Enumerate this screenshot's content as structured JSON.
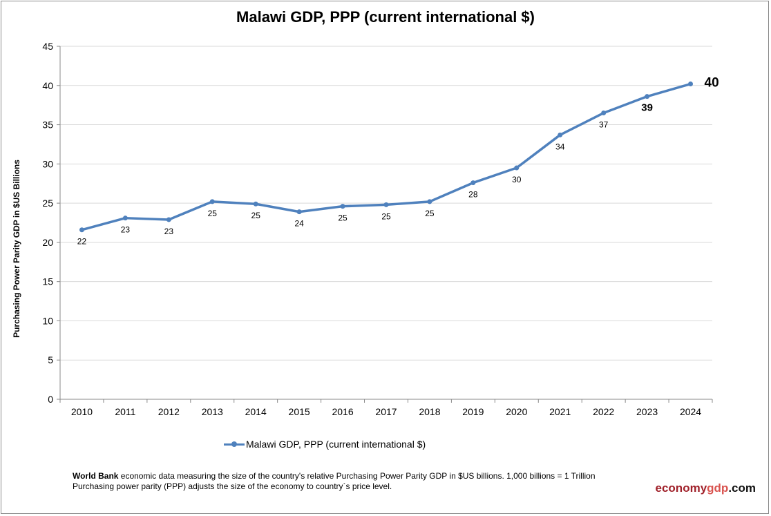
{
  "chart_data": {
    "type": "line",
    "title": "Malawi GDP, PPP (current international $)",
    "ylabel": "Purchasing Power Parity GDP in $US Billions",
    "xlabel": "",
    "ylim": [
      0,
      45
    ],
    "yticks": [
      0,
      5,
      10,
      15,
      20,
      25,
      30,
      35,
      40,
      45
    ],
    "grid": true,
    "legend_placement": "bottom",
    "categories": [
      "2010",
      "2011",
      "2012",
      "2013",
      "2014",
      "2015",
      "2016",
      "2017",
      "2018",
      "2019",
      "2020",
      "2021",
      "2022",
      "2023",
      "2024"
    ],
    "series": [
      {
        "name": "Malawi GDP, PPP (current international $)",
        "color": "#4f81bd",
        "values": [
          21.6,
          23.1,
          22.9,
          25.2,
          24.9,
          23.9,
          24.6,
          24.8,
          25.2,
          27.6,
          29.5,
          33.7,
          36.5,
          38.6,
          40.2
        ],
        "labels": [
          "22",
          "23",
          "23",
          "25",
          "25",
          "24",
          "25",
          "25",
          "25",
          "28",
          "30",
          "34",
          "37",
          "39",
          "40"
        ]
      }
    ]
  },
  "footer": {
    "source_bold": "World Bank",
    "line1": " economic data  measuring the size of the country's relative  Purchasing Power Parity GDP in $US billions. 1,000 billions = 1 Trillion",
    "line2": "Purchasing power parity (PPP) adjusts the size of the economy to country`s price level."
  },
  "logo": {
    "part1": "economy",
    "part2": "gdp",
    "part3": ".com"
  }
}
